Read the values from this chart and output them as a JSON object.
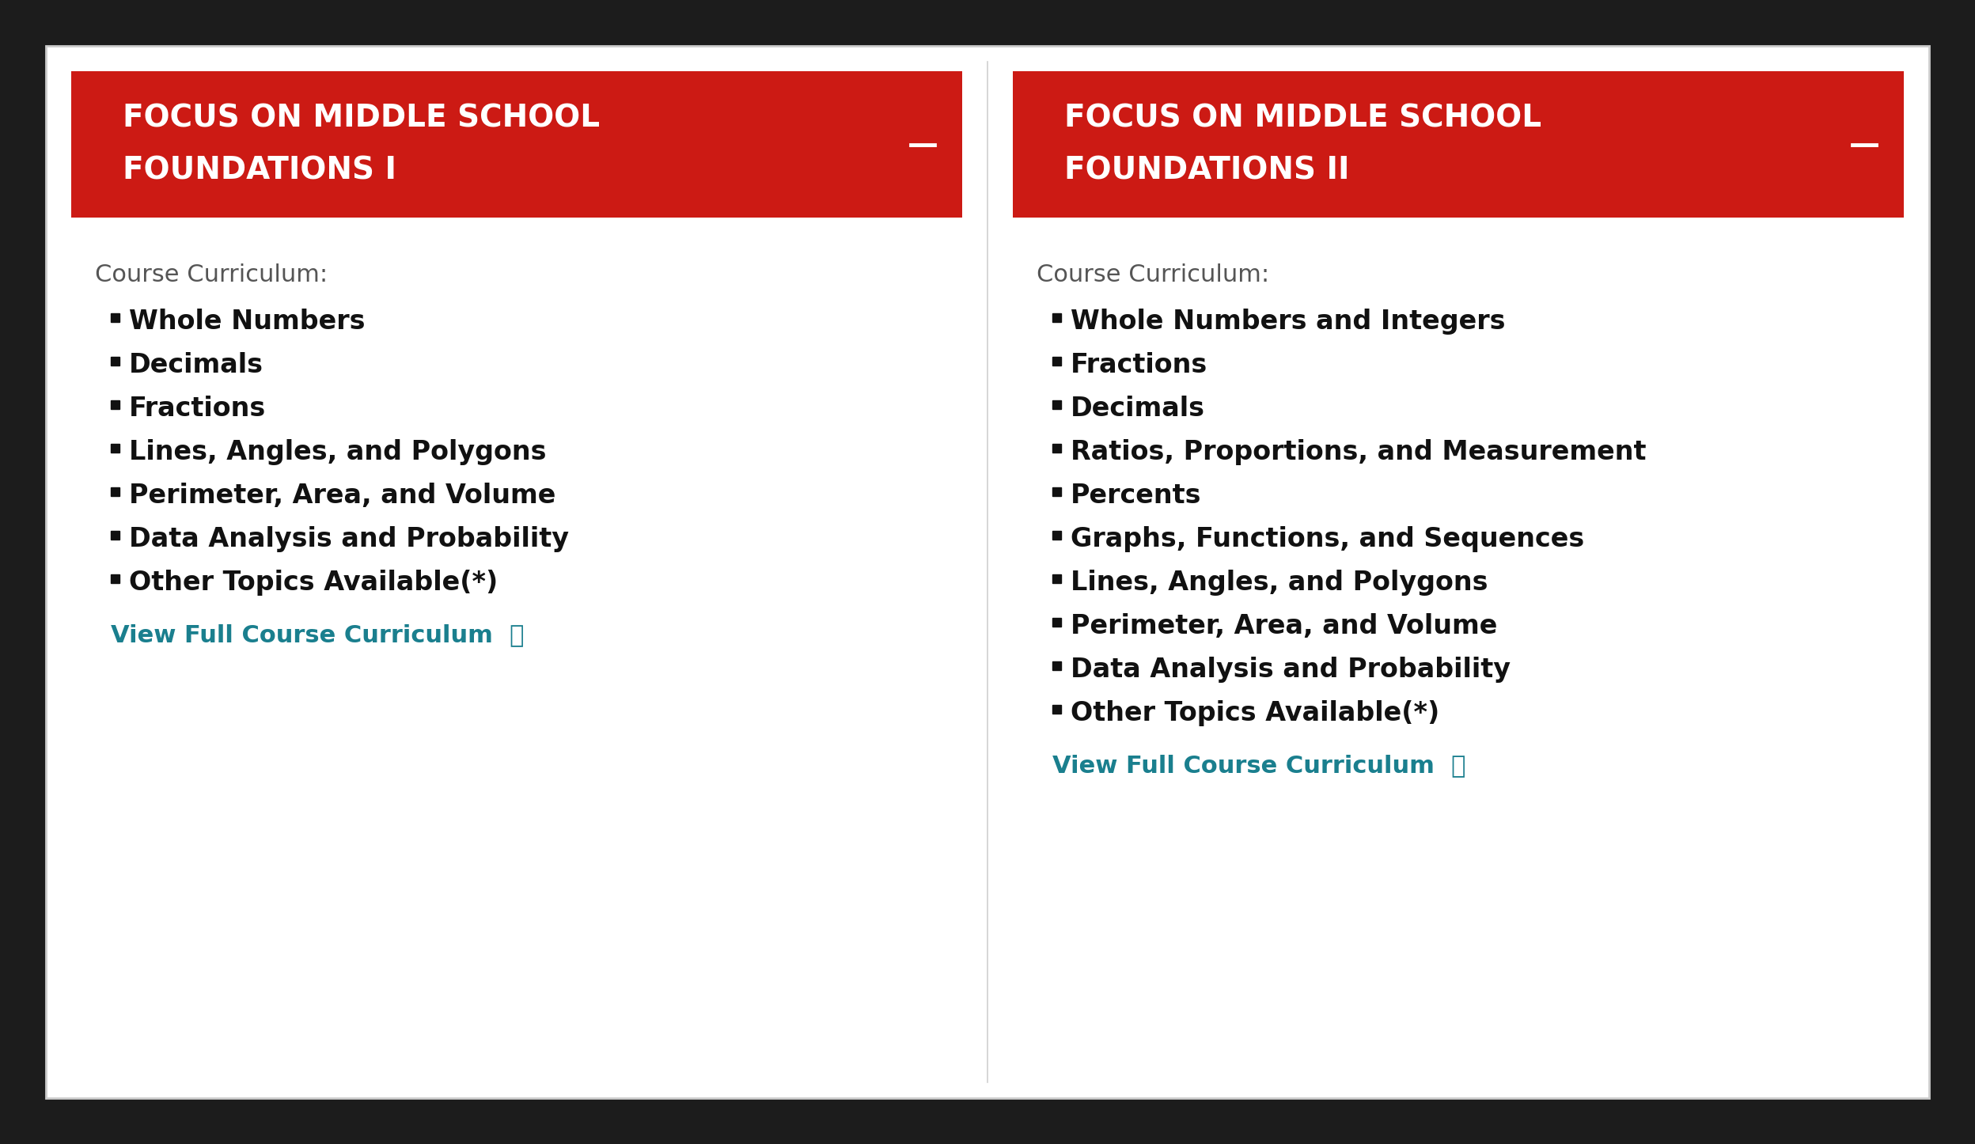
{
  "bg_color": "#1c1c1c",
  "card_bg": "#ffffff",
  "card_border": "#cccccc",
  "header_bg": "#cc1a14",
  "header_text_color": "#ffffff",
  "curriculum_label_color": "#555555",
  "bullet_text_color": "#111111",
  "link_color": "#1a7f8e",
  "dash_color": "#ffffff",
  "col1_title_line1": "FOCUS ON MIDDLE SCHOOL",
  "col1_title_line2": "FOUNDATIONS I",
  "col1_curriculum_label": "Course Curriculum:",
  "col1_items": [
    "Whole Numbers",
    "Decimals",
    "Fractions",
    "Lines, Angles, and Polygons",
    "Perimeter, Area, and Volume",
    "Data Analysis and Probability",
    "Other Topics Available(*)"
  ],
  "col1_link": "View Full Course Curriculum  ⤓",
  "col2_title_line1": "FOCUS ON MIDDLE SCHOOL",
  "col2_title_line2": "FOUNDATIONS II",
  "col2_curriculum_label": "Course Curriculum:",
  "col2_items": [
    "Whole Numbers and Integers",
    "Fractions",
    "Decimals",
    "Ratios, Proportions, and Measurement",
    "Percents",
    "Graphs, Functions, and Sequences",
    "Lines, Angles, and Polygons",
    "Perimeter, Area, and Volume",
    "Data Analysis and Probability",
    "Other Topics Available(*)"
  ],
  "col2_link": "View Full Course Curriculum  ⤓",
  "title_fontsize": 28,
  "label_fontsize": 22,
  "item_fontsize": 24,
  "link_fontsize": 22,
  "dash_fontsize": 28
}
